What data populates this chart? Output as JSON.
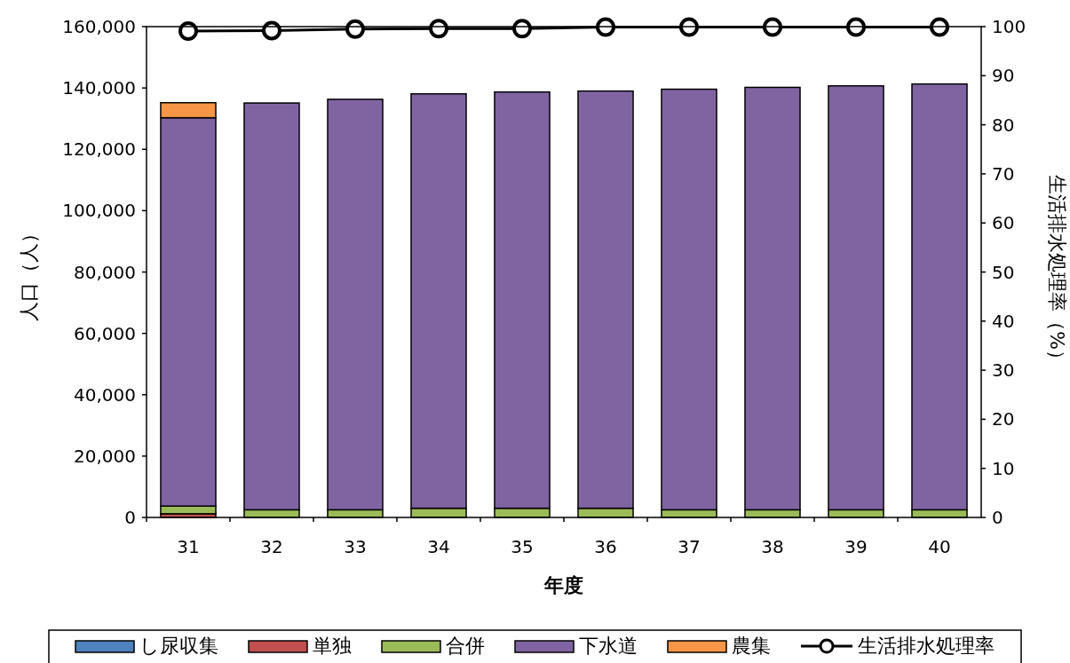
{
  "chart_data": {
    "type": "bar",
    "stacked": true,
    "xlabel": "年度",
    "ylabel": "人口（人）",
    "y2label": "生活排水処理率（%）",
    "categories": [
      "31",
      "32",
      "33",
      "34",
      "35",
      "36",
      "37",
      "38",
      "39",
      "40"
    ],
    "series": [
      {
        "name": "し尿収集",
        "color": "#4f81bd",
        "values": [
          null,
          null,
          null,
          0,
          0,
          0,
          0,
          0,
          0,
          0
        ]
      },
      {
        "name": "単独",
        "color": "#c0504d",
        "values": [
          1200,
          null,
          null,
          0,
          0,
          0,
          0,
          0,
          0,
          0
        ]
      },
      {
        "name": "合併",
        "color": "#9bbb59",
        "values": [
          2500,
          2500,
          2500,
          3000,
          3000,
          3000,
          2500,
          2500,
          2500,
          2500
        ]
      },
      {
        "name": "下水道",
        "color": "#8064a2",
        "values": [
          126600,
          132600,
          133800,
          135100,
          135700,
          136000,
          137100,
          137700,
          138200,
          138800
        ]
      },
      {
        "name": "農集",
        "color": "#f79646",
        "values": [
          4900,
          0,
          0,
          0,
          0,
          0,
          0,
          0,
          0,
          0
        ]
      },
      {
        "name": "生活排水処理率",
        "type": "line",
        "axis": "y2",
        "color": "#000000",
        "marker": "circle",
        "values": [
          99.1,
          99.2,
          99.5,
          99.6,
          99.6,
          99.9,
          99.9,
          99.9,
          99.9,
          99.9
        ]
      }
    ],
    "ylim": [
      0,
      160000
    ],
    "yticks": [
      0,
      {
        "value": 20000,
        "label": "20,000"
      },
      {
        "value": 40000,
        "label": "40,000"
      },
      {
        "value": 60000,
        "label": "60,000"
      },
      {
        "value": 80000,
        "label": "80,000"
      },
      {
        "value": 100000,
        "label": "100,000"
      },
      {
        "value": 120000,
        "label": "120,000"
      },
      {
        "value": 140000,
        "label": "140,000"
      },
      {
        "value": 160000,
        "label": "160,000"
      }
    ],
    "y2lim": [
      0,
      100
    ],
    "y2ticks": [
      0,
      10,
      20,
      30,
      40,
      50,
      60,
      70,
      80,
      90,
      100
    ],
    "grid": false,
    "legend": "bottom"
  }
}
